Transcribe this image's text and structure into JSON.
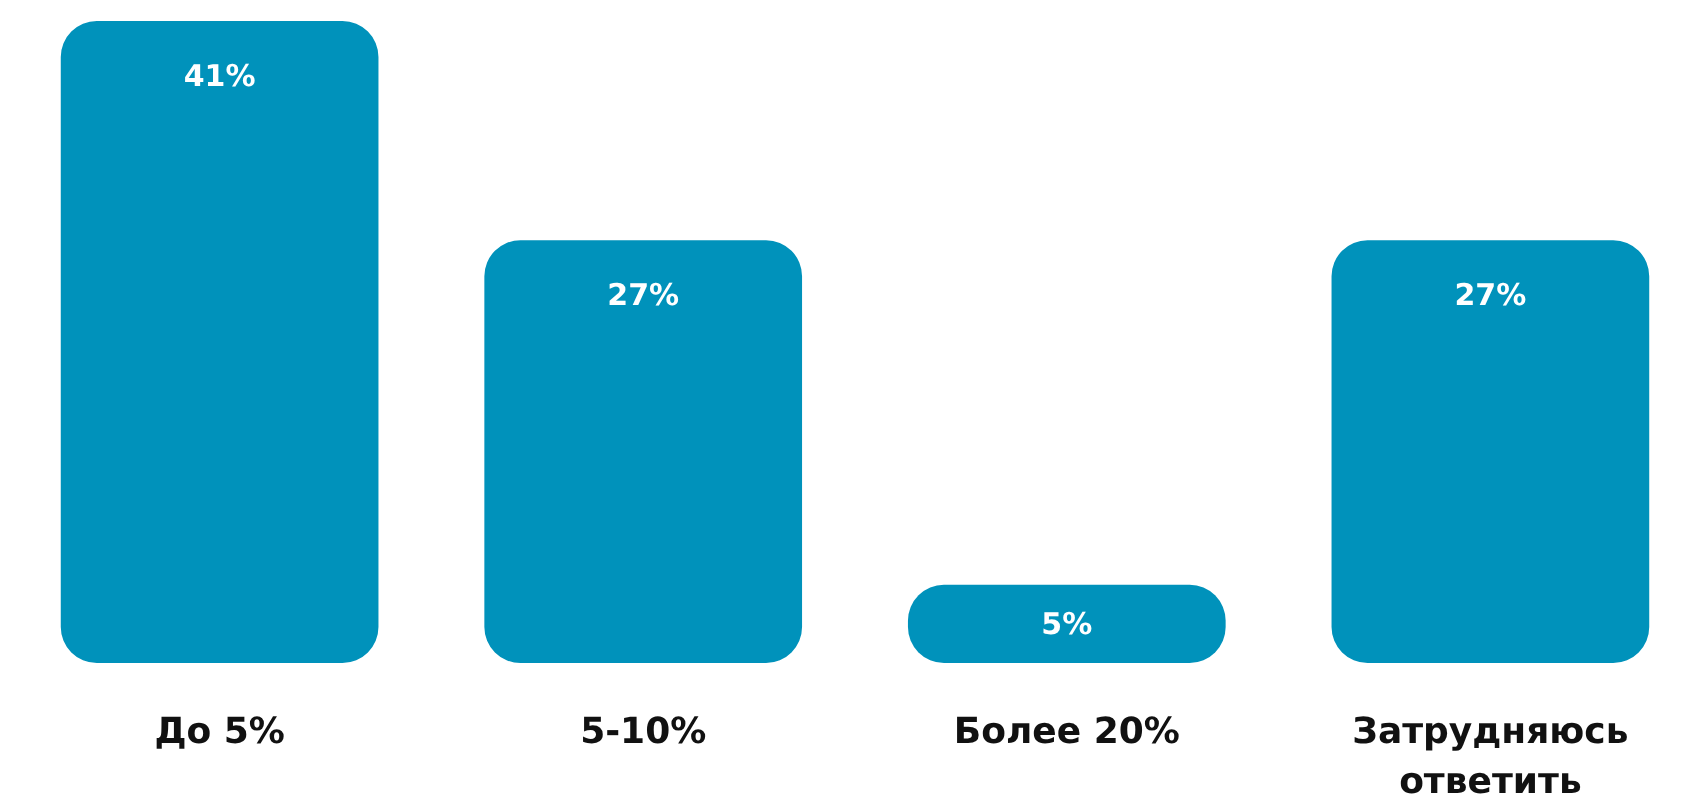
{
  "chart_data": {
    "type": "bar",
    "categories": [
      "До 5%",
      "5-10%",
      "Более 20%",
      "Затрудняюсь ответить"
    ],
    "values": [
      41,
      27,
      5,
      27
    ],
    "color": "#0092bb",
    "value_labels": [
      "41%",
      "27%",
      "5%",
      "27%"
    ],
    "tick_labels": "x"
  }
}
